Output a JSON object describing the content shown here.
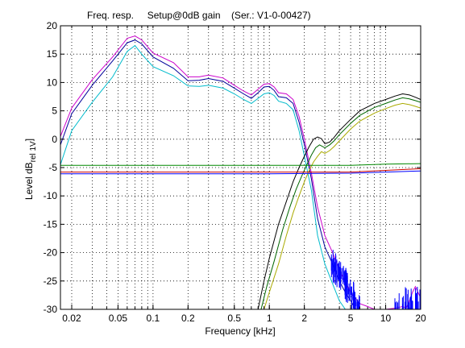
{
  "chart_data": {
    "type": "line",
    "title": "Freq. resp.     Setup@0dB gain    (Ser.: V1-0-00427)",
    "xlabel": "Frequency [kHz]",
    "ylabel_main": "Level dB",
    "ylabel_sub": "rel 1V",
    "xscale": "log",
    "xlim": [
      0.016,
      20
    ],
    "ylim": [
      -30,
      20
    ],
    "grid": true,
    "xticks": [
      {
        "v": 0.02,
        "label": "0.02"
      },
      {
        "v": 0.05,
        "label": "0.05"
      },
      {
        "v": 0.1,
        "label": "0.1"
      },
      {
        "v": 0.2,
        "label": "0.2"
      },
      {
        "v": 0.5,
        "label": "0.5"
      },
      {
        "v": 1,
        "label": "1"
      },
      {
        "v": 2,
        "label": "2"
      },
      {
        "v": 5,
        "label": "5"
      },
      {
        "v": 10,
        "label": "10"
      },
      {
        "v": 20,
        "label": "20"
      }
    ],
    "yticks": [
      {
        "v": 20,
        "label": "20"
      },
      {
        "v": 15,
        "label": "15"
      },
      {
        "v": 10,
        "label": "10"
      },
      {
        "v": 5,
        "label": "5"
      },
      {
        "v": 0,
        "label": "0"
      },
      {
        "v": -5,
        "label": "-5"
      },
      {
        "v": -10,
        "label": "-10"
      },
      {
        "v": -15,
        "label": "-15"
      },
      {
        "v": -20,
        "label": "-20"
      },
      {
        "v": -25,
        "label": "-25"
      },
      {
        "v": -30,
        "label": "-30"
      }
    ],
    "series": [
      {
        "color": "#cc00cc",
        "x": [
          0.016,
          0.02,
          0.03,
          0.045,
          0.06,
          0.07,
          0.08,
          0.1,
          0.15,
          0.2,
          0.25,
          0.3,
          0.4,
          0.5,
          0.6,
          0.7,
          0.8,
          0.9,
          1.0,
          1.1,
          1.2,
          1.4,
          1.6,
          1.8,
          2.0,
          2.3,
          2.6,
          3.0,
          3.5,
          4.0,
          5.0,
          6.0,
          7.0,
          8.0,
          10.0,
          12.0,
          14.0,
          15.0,
          16.0,
          17.0,
          18.0,
          20.0
        ],
        "y": [
          0.5,
          5.5,
          10.5,
          14.5,
          17.8,
          18.2,
          17.5,
          15.2,
          13.5,
          11,
          11,
          11.3,
          10.8,
          9.5,
          8.5,
          7.8,
          8.8,
          9.7,
          9.8,
          9.2,
          8.2,
          8.0,
          7.0,
          4.0,
          0,
          -6,
          -12,
          -17,
          -20,
          -23,
          -27,
          -29,
          -29.5,
          -30,
          -30,
          -29.8,
          -29.5,
          -29.8,
          -28.5,
          -27,
          -26,
          -28
        ]
      },
      {
        "color": "#000099",
        "x": [
          0.016,
          0.02,
          0.03,
          0.045,
          0.06,
          0.07,
          0.08,
          0.1,
          0.15,
          0.2,
          0.25,
          0.3,
          0.4,
          0.5,
          0.6,
          0.7,
          0.8,
          0.9,
          1.0,
          1.1,
          1.2,
          1.4,
          1.6,
          1.8,
          2.0,
          2.3,
          2.6,
          3.0,
          3.5,
          4.0,
          4.5,
          5.0,
          5.5
        ],
        "y": [
          -1,
          4.5,
          9.5,
          13.8,
          17.0,
          17.5,
          16.8,
          14.5,
          12.5,
          10.3,
          10.4,
          10.7,
          10.2,
          9.0,
          8.0,
          7.2,
          8.2,
          9.2,
          9.3,
          8.6,
          7.5,
          7.3,
          6.3,
          3.0,
          -1,
          -7,
          -14,
          -19,
          -22,
          -25,
          -27,
          -28.5,
          -30
        ]
      },
      {
        "color": "#00bbcc",
        "x": [
          0.016,
          0.02,
          0.03,
          0.045,
          0.06,
          0.07,
          0.08,
          0.1,
          0.15,
          0.2,
          0.25,
          0.3,
          0.4,
          0.5,
          0.6,
          0.7,
          0.8,
          0.9,
          1.0,
          1.1,
          1.2,
          1.4,
          1.6,
          1.8,
          2.0,
          2.3,
          2.6,
          3.0,
          3.5,
          4.0,
          4.5
        ],
        "y": [
          -4.5,
          1.5,
          6.5,
          11,
          15.5,
          16.5,
          15.0,
          12.8,
          11.2,
          9.4,
          9.3,
          9.5,
          9.0,
          8.0,
          7.0,
          6.3,
          7.2,
          8.0,
          8.2,
          7.7,
          6.7,
          6.3,
          5.2,
          1.5,
          -3,
          -9,
          -17,
          -22,
          -25.5,
          -28.5,
          -30
        ]
      },
      {
        "color": "#000000",
        "x": [
          0.8,
          0.9,
          1.0,
          1.2,
          1.4,
          1.6,
          1.8,
          2.0,
          2.2,
          2.4,
          2.6,
          2.8,
          3.0,
          3.3,
          3.6,
          4.0,
          5.0,
          6.0,
          8.0,
          10.0,
          12.0,
          14.0,
          16.0,
          18.0,
          20.0
        ],
        "y": [
          -30,
          -25,
          -21,
          -15,
          -11,
          -7.5,
          -5,
          -3,
          -1.3,
          0,
          0.4,
          0.1,
          -0.8,
          -0.5,
          0.3,
          1.5,
          3.5,
          5.0,
          6.3,
          7.0,
          7.6,
          8.0,
          7.8,
          7.4,
          7.0
        ]
      },
      {
        "color": "#006600",
        "x": [
          0.85,
          0.95,
          1.1,
          1.3,
          1.5,
          1.7,
          1.9,
          2.1,
          2.3,
          2.5,
          2.7,
          3.0,
          3.3,
          3.6,
          4.0,
          5.0,
          6.0,
          8.0,
          10.0,
          12.0,
          14.0,
          16.0,
          18.0,
          20.0
        ],
        "y": [
          -30,
          -26,
          -21.5,
          -16,
          -12,
          -8.8,
          -6.5,
          -4.5,
          -2.8,
          -1.5,
          -1.0,
          -1.5,
          -1.0,
          -0.3,
          0.8,
          2.8,
          4.2,
          5.6,
          6.3,
          6.9,
          7.3,
          7.1,
          6.8,
          6.5
        ]
      },
      {
        "color": "#aaaa00",
        "x": [
          0.9,
          1.0,
          1.2,
          1.4,
          1.6,
          1.8,
          2.0,
          2.2,
          2.4,
          2.6,
          2.8,
          3.0,
          3.3,
          3.6,
          4.0,
          5.0,
          6.0,
          8.0,
          10.0,
          12.0,
          14.0,
          16.0,
          18.0,
          20.0
        ],
        "y": [
          -30,
          -27,
          -22,
          -17,
          -13,
          -10,
          -7.5,
          -5.5,
          -4.0,
          -3.0,
          -2.2,
          -2.5,
          -2.0,
          -1.3,
          -0.3,
          1.8,
          3.2,
          4.6,
          5.4,
          6.0,
          6.3,
          6.1,
          5.8,
          5.5
        ]
      },
      {
        "color": "#008800",
        "x": [
          0.016,
          0.5,
          1.0,
          5.0,
          10.0,
          20.0
        ],
        "y": [
          -4.6,
          -4.6,
          -4.6,
          -4.6,
          -4.4,
          -4.3
        ]
      },
      {
        "color": "#cc0000",
        "x": [
          0.016,
          1.0,
          5.0,
          10.0,
          20.0
        ],
        "y": [
          -5.8,
          -5.8,
          -5.8,
          -5.5,
          -5.2
        ]
      },
      {
        "color": "#0000ff",
        "x": [
          0.016,
          1.0,
          5.0,
          10.0,
          20.0
        ],
        "y": [
          -6.1,
          -6.1,
          -6.0,
          -5.8,
          -5.6
        ]
      }
    ]
  }
}
